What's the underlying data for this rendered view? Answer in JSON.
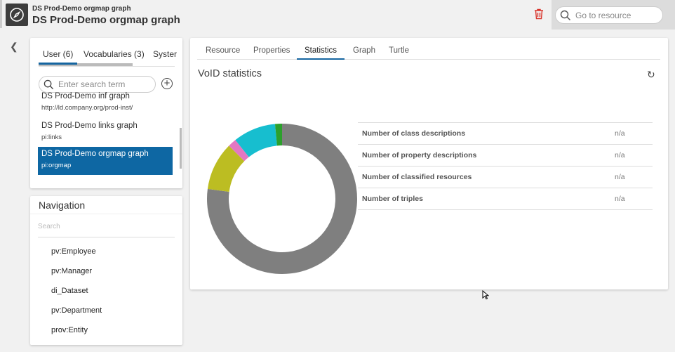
{
  "header": {
    "subtitle": "DS Prod-Demo orgmap graph",
    "title": "DS Prod-Demo orgmap graph",
    "search_placeholder": "Go to resource"
  },
  "graphs": {
    "tabs": [
      {
        "label": "User (6)"
      },
      {
        "label": "Vocabularies (3)"
      },
      {
        "label": "Syster"
      }
    ],
    "search_placeholder": "Enter search term",
    "items": [
      {
        "name": "DS Prod-Demo inf graph",
        "sub": "http://ld.company.org/prod-inst/"
      },
      {
        "name": "DS Prod-Demo links graph",
        "sub": "pi:links"
      },
      {
        "name": "DS Prod-Demo orgmap graph",
        "sub": "pi:orgmap",
        "selected": true
      }
    ]
  },
  "navigation": {
    "title": "Navigation",
    "search_placeholder": "Search",
    "items": [
      "pv:Employee",
      "pv:Manager",
      "di_Dataset",
      "pv:Department",
      "prov:Entity"
    ]
  },
  "main": {
    "tabs": [
      "Resource",
      "Properties",
      "Statistics",
      "Graph",
      "Turtle"
    ],
    "active_tab": "Statistics",
    "section_title": "VoID statistics",
    "stats": [
      {
        "label": "Number of class descriptions",
        "value": "n/a"
      },
      {
        "label": "Number of property descriptions",
        "value": "n/a"
      },
      {
        "label": "Number of classified resources",
        "value": "n/a"
      },
      {
        "label": "Number of triples",
        "value": "n/a"
      }
    ]
  },
  "chart_data": {
    "type": "pie",
    "variant": "donut",
    "values": [
      77.1,
      10.4,
      1.8,
      9.2,
      1.5
    ],
    "colors": [
      "#7f7f7f",
      "#bcbd22",
      "#e377c2",
      "#17becf",
      "#2ca02c"
    ],
    "start": "top",
    "direction": "clockwise"
  },
  "colors": {
    "accent": "#1565a0",
    "selected": "#0e67a3",
    "delete": "#d9342b"
  }
}
